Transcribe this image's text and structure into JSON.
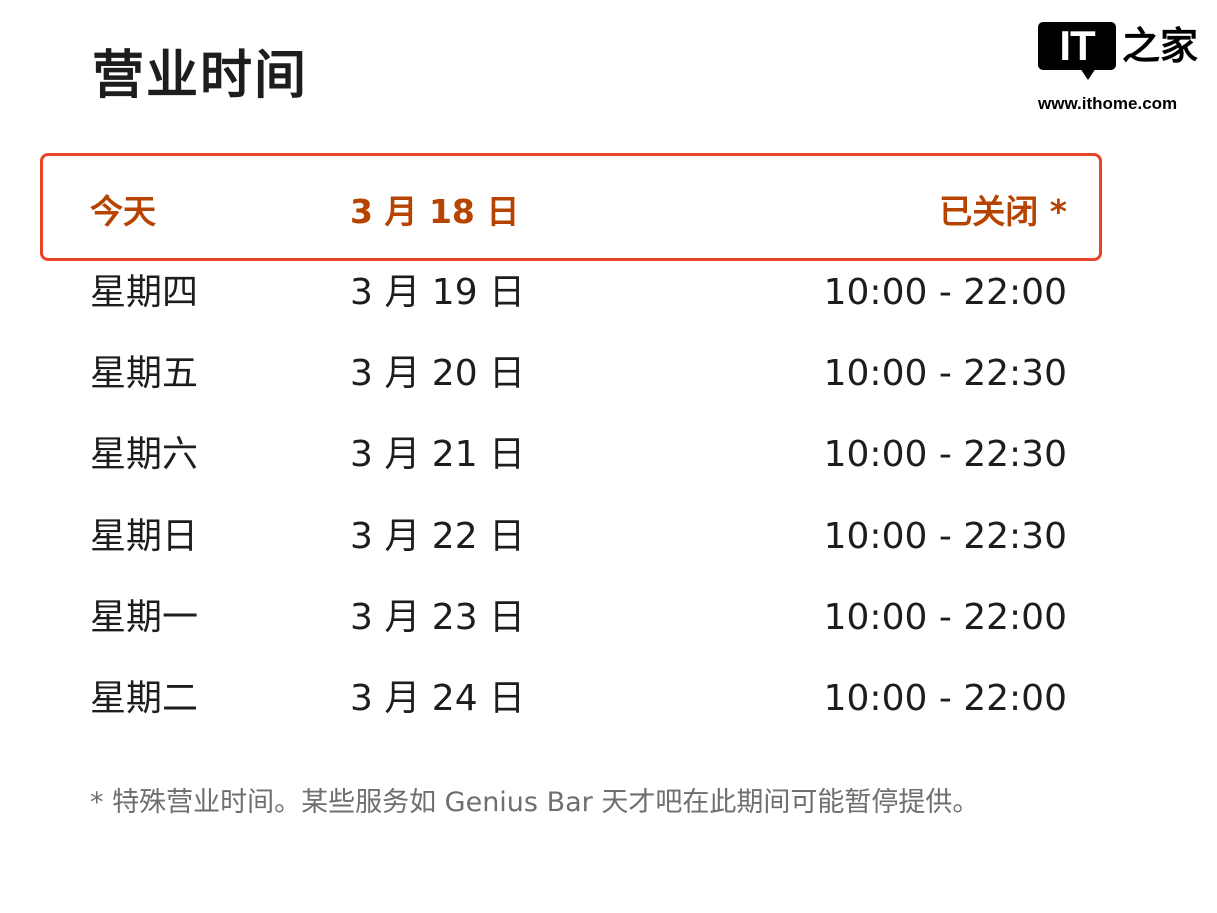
{
  "title": "营业时间",
  "logo": {
    "mark": "IT",
    "name": "之家",
    "url": "www.ithome.com"
  },
  "colors": {
    "today_text": "#b64400",
    "highlight_border": "#e8442a",
    "note_text": "#6e6e73"
  },
  "today": {
    "day": "今天",
    "date": "3 月 18 日",
    "status": "已关闭 *"
  },
  "rows": [
    {
      "day": "星期四",
      "date": "3 月 19 日",
      "hours": "10:00 - 22:00"
    },
    {
      "day": "星期五",
      "date": "3 月 20 日",
      "hours": "10:00 - 22:30"
    },
    {
      "day": "星期六",
      "date": "3 月 21 日",
      "hours": "10:00 - 22:30"
    },
    {
      "day": "星期日",
      "date": "3 月 22 日",
      "hours": "10:00 - 22:30"
    },
    {
      "day": "星期一",
      "date": "3 月 23 日",
      "hours": "10:00 - 22:00"
    },
    {
      "day": "星期二",
      "date": "3 月 24 日",
      "hours": "10:00 - 22:00"
    }
  ],
  "footnote": "* 特殊营业时间。某些服务如 Genius Bar 天才吧在此期间可能暂停提供。"
}
